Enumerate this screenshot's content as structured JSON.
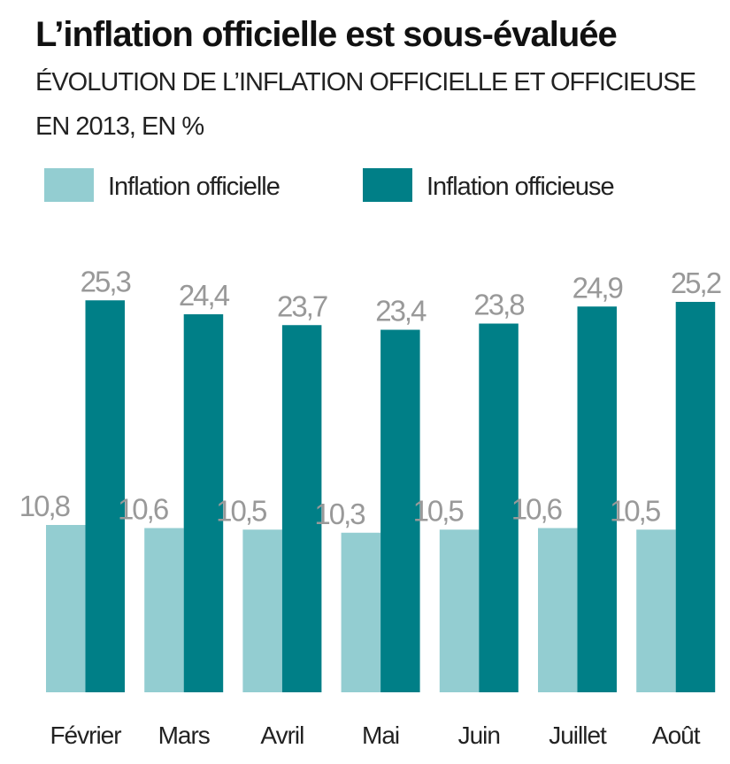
{
  "chart_data": {
    "type": "bar",
    "title": "L’inflation officielle est sous-évaluée",
    "subtitle": [
      "ÉVOLUTION DE L’INFLATION OFFICIELLE ET OFFICIEUSE",
      "EN 2013, EN %"
    ],
    "categories": [
      "Février",
      "Mars",
      "Avril",
      "Mai",
      "Juin",
      "Juillet",
      "Août"
    ],
    "series": [
      {
        "name": "Inflation officielle",
        "color": "#93cdd1",
        "values": [
          10.8,
          10.6,
          10.5,
          10.3,
          10.5,
          10.6,
          10.5
        ],
        "value_labels": [
          "10,8",
          "10,6",
          "10,5",
          "10,3",
          "10,5",
          "10,6",
          "10,5"
        ]
      },
      {
        "name": "Inflation officieuse",
        "color": "#007f87",
        "values": [
          25.3,
          24.4,
          23.7,
          23.4,
          23.8,
          24.9,
          25.2
        ],
        "value_labels": [
          "25,3",
          "24,4",
          "23,7",
          "23,4",
          "23,8",
          "24,9",
          "25,2"
        ]
      }
    ]
  }
}
